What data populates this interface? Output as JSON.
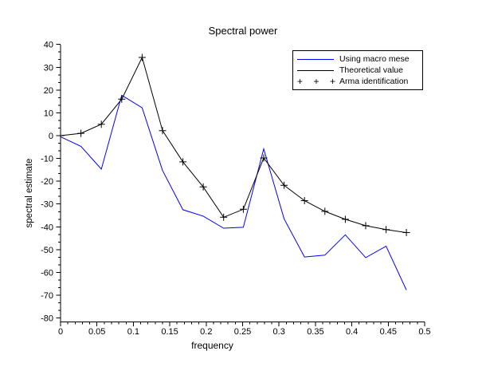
{
  "figure": {
    "background": "#ffffff"
  },
  "chart_data": {
    "type": "line",
    "title": "Spectral power",
    "xlabel": "frequency",
    "ylabel": "spectral estimate",
    "xlim": [
      0,
      0.5
    ],
    "ylim": [
      -80,
      40
    ],
    "grid": false,
    "legend_position": "top-right",
    "axis_color": "#000000",
    "text_color": "#000000",
    "x_tick_labels": [
      "0",
      "0.05",
      "0.1",
      "0.15",
      "0.2",
      "0.25",
      "0.3",
      "0.35",
      "0.4",
      "0.45",
      "0.5"
    ],
    "y_tick_labels": [
      "40",
      "30",
      "20",
      "10",
      "0",
      "-10",
      "-20",
      "-30",
      "-40",
      "-50",
      "-60",
      "-70",
      "-80"
    ],
    "x_minor_step": 0.01,
    "y_minor_per_major": 3,
    "x": [
      0,
      0.028,
      0.056,
      0.084,
      0.112,
      0.14,
      0.168,
      0.196,
      0.224,
      0.251,
      0.279,
      0.307,
      0.335,
      0.363,
      0.391,
      0.419,
      0.447,
      0.475
    ],
    "series": [
      {
        "name": "Using macro mese",
        "style": "line",
        "color": "#0000ff",
        "values": [
          -0.5,
          -4.7,
          -14.7,
          17.7,
          12.2,
          -15.3,
          -32.5,
          -35.3,
          -40.6,
          -40.2,
          -5.8,
          -36.5,
          -53.2,
          -52.4,
          -43.5,
          -53.5,
          -48.5,
          -67.7
        ]
      },
      {
        "name": "Theoretical value",
        "style": "line",
        "color": "#000000",
        "values": [
          0,
          1,
          5,
          16,
          34.3,
          2.2,
          -11.5,
          -22.5,
          -35.8,
          -32.3,
          -9.8,
          -21.8,
          -28.5,
          -33.2,
          -36.7,
          -39.5,
          -41.2,
          -42.5
        ]
      },
      {
        "name": "Arma identification",
        "style": "plus",
        "color": "#000000",
        "values": [
          0,
          1,
          5,
          16,
          34.3,
          2.2,
          -11.5,
          -22.5,
          -35.8,
          -32.3,
          -9.8,
          -21.8,
          -28.5,
          -33.2,
          -36.7,
          -39.5,
          -41.2,
          -42.5
        ]
      }
    ]
  }
}
